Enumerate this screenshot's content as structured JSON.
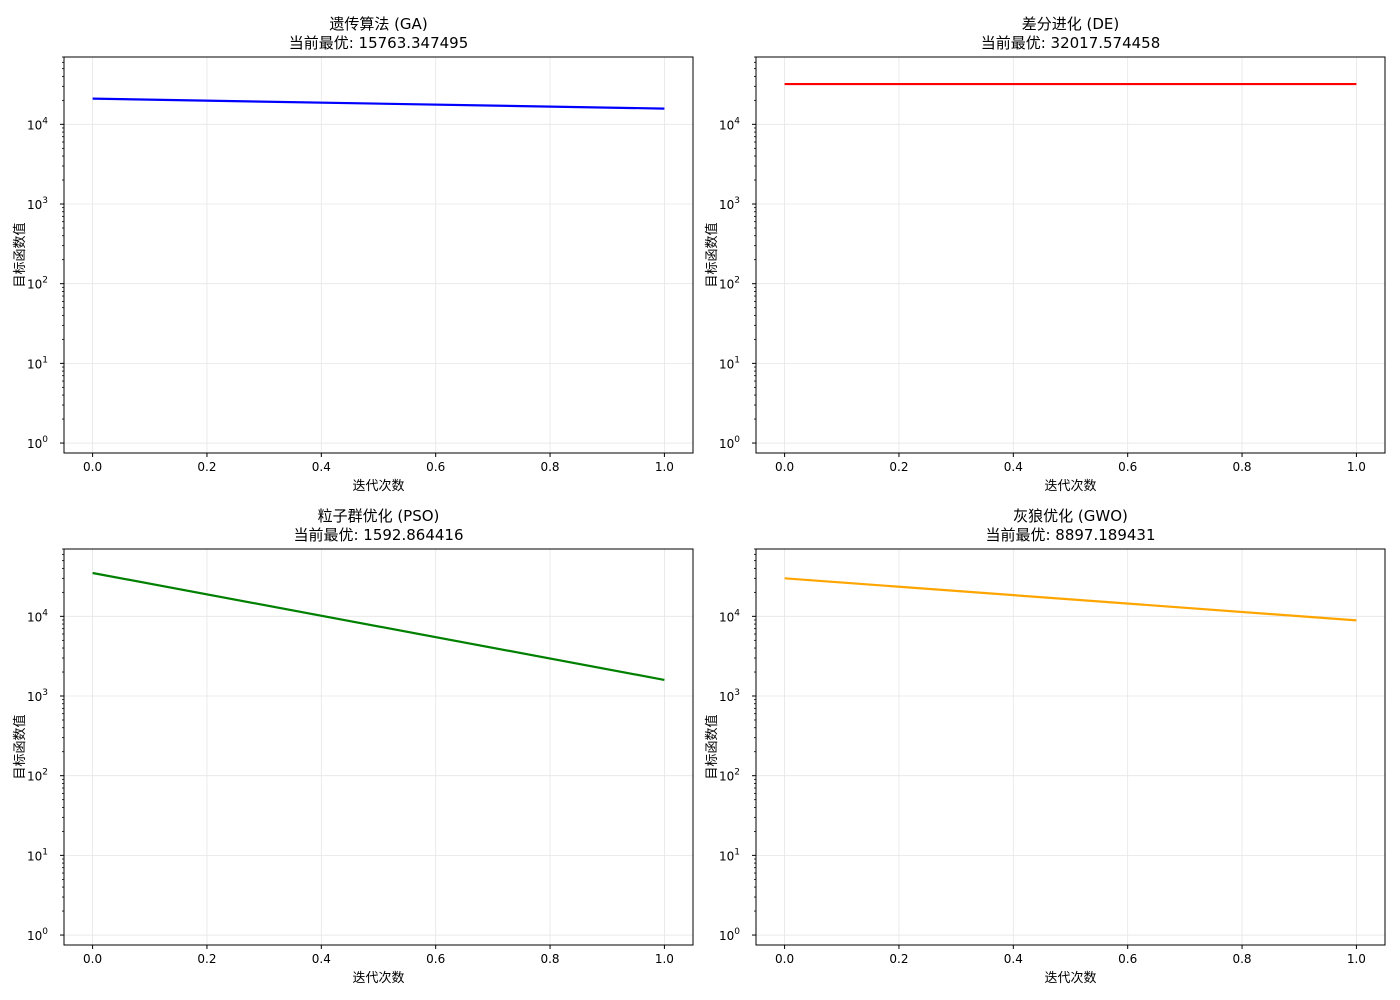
{
  "figure": {
    "background": "#ffffff",
    "grid_color": "#e6e6e6"
  },
  "chart_data": [
    {
      "type": "line",
      "title": "遗传算法 (GA)",
      "subtitle": "当前最优: 15763.347495",
      "xlabel": "迭代次数",
      "ylabel": "目标函数值",
      "y_scale": "log",
      "xlim": [
        -0.05,
        1.05
      ],
      "ylim": [
        0.75,
        70000
      ],
      "x_ticks": [
        0.0,
        0.2,
        0.4,
        0.6,
        0.8,
        1.0
      ],
      "x_tick_labels": [
        "0.0",
        "0.2",
        "0.4",
        "0.6",
        "0.8",
        "1.0"
      ],
      "y_ticks": [
        1,
        10,
        100,
        1000,
        10000
      ],
      "y_tick_base": "10",
      "y_tick_exponents": [
        "0",
        "1",
        "2",
        "3",
        "4"
      ],
      "grid": true,
      "series": [
        {
          "x": [
            0,
            1
          ],
          "y": [
            21000,
            15763.347495
          ],
          "color": "#0000ff"
        }
      ]
    },
    {
      "type": "line",
      "title": "差分进化 (DE)",
      "subtitle": "当前最优: 32017.574458",
      "xlabel": "迭代次数",
      "ylabel": "目标函数值",
      "y_scale": "log",
      "xlim": [
        -0.05,
        1.05
      ],
      "ylim": [
        0.75,
        70000
      ],
      "x_ticks": [
        0.0,
        0.2,
        0.4,
        0.6,
        0.8,
        1.0
      ],
      "x_tick_labels": [
        "0.0",
        "0.2",
        "0.4",
        "0.6",
        "0.8",
        "1.0"
      ],
      "y_ticks": [
        1,
        10,
        100,
        1000,
        10000
      ],
      "y_tick_base": "10",
      "y_tick_exponents": [
        "0",
        "1",
        "2",
        "3",
        "4"
      ],
      "grid": true,
      "series": [
        {
          "x": [
            0,
            1
          ],
          "y": [
            32017.574458,
            32017.574458
          ],
          "color": "#ff0000"
        }
      ]
    },
    {
      "type": "line",
      "title": "粒子群优化 (PSO)",
      "subtitle": "当前最优: 1592.864416",
      "xlabel": "迭代次数",
      "ylabel": "目标函数值",
      "y_scale": "log",
      "xlim": [
        -0.05,
        1.05
      ],
      "ylim": [
        0.75,
        70000
      ],
      "x_ticks": [
        0.0,
        0.2,
        0.4,
        0.6,
        0.8,
        1.0
      ],
      "x_tick_labels": [
        "0.0",
        "0.2",
        "0.4",
        "0.6",
        "0.8",
        "1.0"
      ],
      "y_ticks": [
        1,
        10,
        100,
        1000,
        10000
      ],
      "y_tick_base": "10",
      "y_tick_exponents": [
        "0",
        "1",
        "2",
        "3",
        "4"
      ],
      "grid": true,
      "series": [
        {
          "x": [
            0,
            1
          ],
          "y": [
            35000,
            1592.864416
          ],
          "color": "#008000"
        }
      ]
    },
    {
      "type": "line",
      "title": "灰狼优化 (GWO)",
      "subtitle": "当前最优: 8897.189431",
      "xlabel": "迭代次数",
      "ylabel": "目标函数值",
      "y_scale": "log",
      "xlim": [
        -0.05,
        1.05
      ],
      "ylim": [
        0.75,
        70000
      ],
      "x_ticks": [
        0.0,
        0.2,
        0.4,
        0.6,
        0.8,
        1.0
      ],
      "x_tick_labels": [
        "0.0",
        "0.2",
        "0.4",
        "0.6",
        "0.8",
        "1.0"
      ],
      "y_ticks": [
        1,
        10,
        100,
        1000,
        10000
      ],
      "y_tick_base": "10",
      "y_tick_exponents": [
        "0",
        "1",
        "2",
        "3",
        "4"
      ],
      "grid": true,
      "series": [
        {
          "x": [
            0,
            1
          ],
          "y": [
            30000,
            8897.189431
          ],
          "color": "#ffa500"
        }
      ]
    }
  ]
}
